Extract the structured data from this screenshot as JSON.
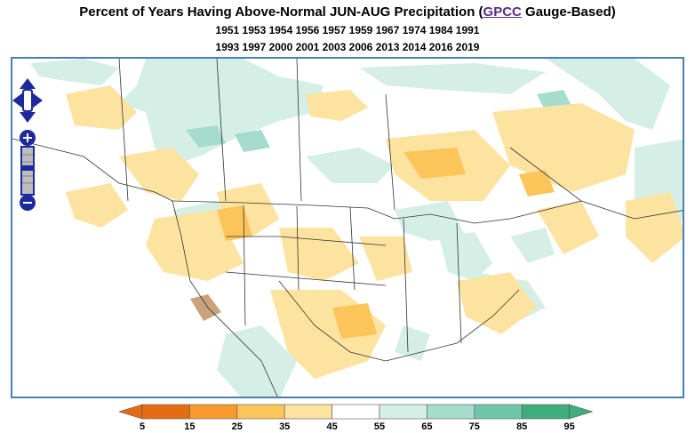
{
  "title": {
    "prefix": "Percent of Years Having Above-Normal JUN-AUG Precipitation (",
    "link": "GPCC",
    "suffix": " Gauge-Based)"
  },
  "years_line1": "1951 1953 1954 1956 1957 1959 1967 1974 1984 1991",
  "years_line2": "1993 1997 2000 2001 2003 2006 2013 2014 2016 2019",
  "map_controls": [
    "pan-up",
    "pan-left",
    "pan-right",
    "pan-down",
    "zoom-in",
    "zoom-slider",
    "zoom-out"
  ],
  "legend": {
    "ticks": [
      "5",
      "15",
      "25",
      "35",
      "45",
      "55",
      "65",
      "75",
      "85",
      "95"
    ],
    "colors": [
      "#e46d14",
      "#f99a30",
      "#fbc55a",
      "#fde3a0",
      "#ffffff",
      "#d5efe6",
      "#a6dccb",
      "#6fc6a8",
      "#3fae7c"
    ],
    "low_arrow_color": "#e46d14",
    "high_arrow_color": "#3fae7c"
  },
  "colors": {
    "map_border": "#4a7fae",
    "nav_blue": "#1c2a9c",
    "link": "#5b2a86",
    "brown_shade": "#c9a37a"
  }
}
